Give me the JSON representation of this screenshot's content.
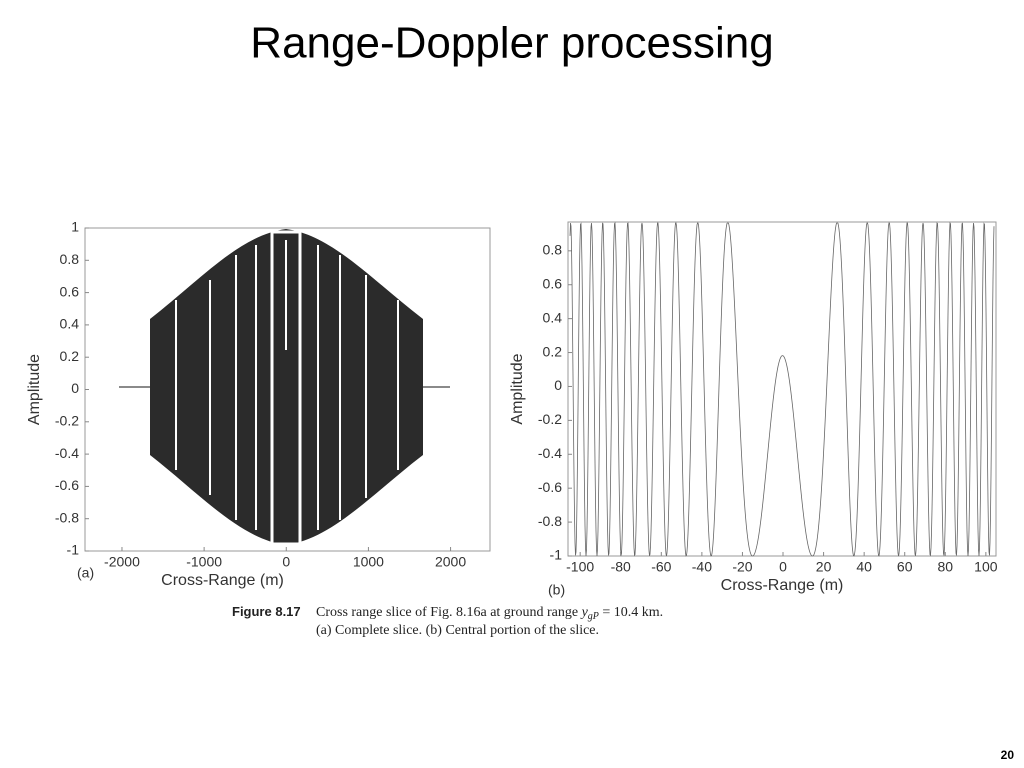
{
  "title": "Range-Doppler processing",
  "page_number": "20",
  "caption": {
    "label": "Figure 8.17",
    "line1_start": "Cross range slice of Fig. 8.16a at ground range ",
    "variable": "y",
    "subscript": "gP",
    "line1_end": " = 10.4 km.",
    "line2": "(a) Complete slice. (b) Central portion of the slice."
  },
  "chart_data": [
    {
      "type": "line",
      "panel_label": "(a)",
      "xlabel": "Cross-Range (m)",
      "ylabel": "Amplitude",
      "xlim": [
        -2450,
        2480
      ],
      "ylim": [
        -1,
        1
      ],
      "xticks": [
        -2000,
        -1000,
        0,
        1000,
        2000
      ],
      "yticks": [
        -1,
        -0.8,
        -0.6,
        -0.4,
        -0.2,
        0,
        0.2,
        0.4,
        0.6,
        0.8,
        1
      ]
    },
    {
      "type": "line",
      "panel_label": "(b)",
      "xlabel": "Cross-Range (m)",
      "ylabel": "Amplitude",
      "xlim": [
        -106,
        105
      ],
      "ylim": [
        -1,
        0.97
      ],
      "xticks": [
        -100,
        -80,
        -60,
        -40,
        -20,
        0,
        20,
        40,
        60,
        80,
        100
      ],
      "yticks": [
        -1,
        -0.8,
        -0.6,
        -0.4,
        -0.2,
        0,
        0.2,
        0.4,
        0.6,
        0.8
      ]
    }
  ]
}
